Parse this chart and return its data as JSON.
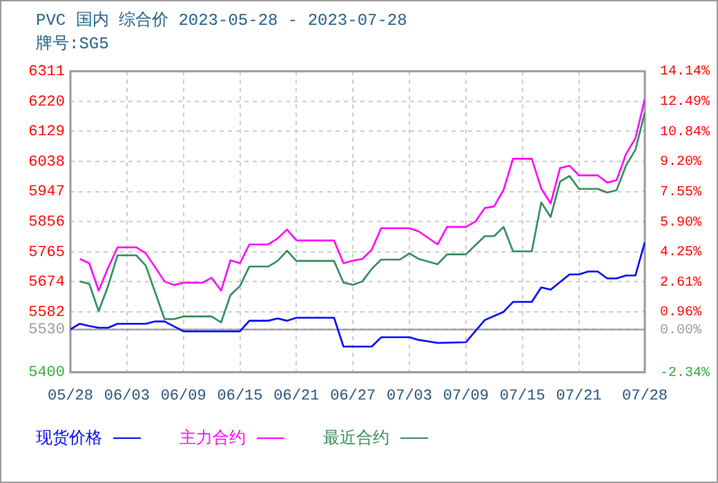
{
  "chart_data": {
    "type": "line",
    "title": "PVC 国内 综合价 2023-05-28 - 2023-07-28",
    "subtitle": "牌号:SG5",
    "xlim": [
      "2023-05-28",
      "2023-07-28"
    ],
    "xticks": [
      {
        "value": "2023-05-28",
        "label": "05/28"
      },
      {
        "value": "2023-06-03",
        "label": "06/03"
      },
      {
        "value": "2023-06-09",
        "label": "06/09"
      },
      {
        "value": "2023-06-15",
        "label": "06/15"
      },
      {
        "value": "2023-06-21",
        "label": "06/21"
      },
      {
        "value": "2023-06-27",
        "label": "06/27"
      },
      {
        "value": "2023-07-03",
        "label": "07/03"
      },
      {
        "value": "2023-07-09",
        "label": "07/09"
      },
      {
        "value": "2023-07-15",
        "label": "07/15"
      },
      {
        "value": "2023-07-21",
        "label": "07/21"
      },
      {
        "value": "2023-07-28",
        "label": "07/28"
      }
    ],
    "ylim": [
      5400,
      6311
    ],
    "yticks": [
      5400,
      5530,
      5582,
      5674,
      5765,
      5856,
      5947,
      6038,
      6129,
      6220,
      6311
    ],
    "y2lim": [
      -2.34,
      14.14
    ],
    "y2ticks": [
      {
        "value": -2.34,
        "label": "-2.34%"
      },
      {
        "value": 0,
        "label": "0.00%"
      },
      {
        "value": 0.96,
        "label": "0.96%"
      },
      {
        "value": 2.61,
        "label": "2.61%"
      },
      {
        "value": 4.25,
        "label": "4.25%"
      },
      {
        "value": 5.9,
        "label": "5.90%"
      },
      {
        "value": 7.55,
        "label": "7.55%"
      },
      {
        "value": 9.2,
        "label": "9.20%"
      },
      {
        "value": 10.84,
        "label": "10.84%"
      },
      {
        "value": 12.49,
        "label": "12.49%"
      },
      {
        "value": 14.14,
        "label": "14.14%"
      }
    ],
    "grid": true,
    "legend": "bottom",
    "marker": "none",
    "line_style": "solid",
    "ref_lines": [
      {
        "axis": "y2",
        "value": 0,
        "color": "#999999"
      }
    ],
    "series": [
      {
        "name": "现货价格",
        "color": "#0000ff",
        "x": [
          "2023-05-28",
          "2023-05-29",
          "2023-05-30",
          "2023-05-31",
          "2023-06-01",
          "2023-06-02",
          "2023-06-05",
          "2023-06-06",
          "2023-06-07",
          "2023-06-09",
          "2023-06-15",
          "2023-06-16",
          "2023-06-18",
          "2023-06-19",
          "2023-06-20",
          "2023-06-21",
          "2023-06-25",
          "2023-06-26",
          "2023-06-29",
          "2023-06-30",
          "2023-07-03",
          "2023-07-04",
          "2023-07-06",
          "2023-07-09",
          "2023-07-11",
          "2023-07-13",
          "2023-07-14",
          "2023-07-16",
          "2023-07-17",
          "2023-07-18",
          "2023-07-20",
          "2023-07-21",
          "2023-07-22",
          "2023-07-23",
          "2023-07-24",
          "2023-07-25",
          "2023-07-26",
          "2023-07-27",
          "2023-07-28"
        ],
        "values": [
          5530,
          5547,
          5540,
          5535,
          5535,
          5547,
          5547,
          5554,
          5554,
          5524,
          5524,
          5556,
          5556,
          5563,
          5556,
          5565,
          5565,
          5478,
          5478,
          5506,
          5506,
          5498,
          5489,
          5491,
          5558,
          5583,
          5613,
          5613,
          5657,
          5650,
          5696,
          5696,
          5705,
          5705,
          5684,
          5684,
          5693,
          5693,
          5794
        ]
      },
      {
        "name": "主力合约",
        "color": "#ff00ff",
        "x": [
          "2023-05-29",
          "2023-05-30",
          "2023-05-31",
          "2023-06-01",
          "2023-06-02",
          "2023-06-04",
          "2023-06-05",
          "2023-06-07",
          "2023-06-08",
          "2023-06-09",
          "2023-06-11",
          "2023-06-12",
          "2023-06-13",
          "2023-06-14",
          "2023-06-15",
          "2023-06-16",
          "2023-06-18",
          "2023-06-19",
          "2023-06-20",
          "2023-06-21",
          "2023-06-25",
          "2023-06-26",
          "2023-06-27",
          "2023-06-28",
          "2023-06-29",
          "2023-06-30",
          "2023-07-03",
          "2023-07-04",
          "2023-07-06",
          "2023-07-07",
          "2023-07-09",
          "2023-07-10",
          "2023-07-11",
          "2023-07-12",
          "2023-07-13",
          "2023-07-14",
          "2023-07-16",
          "2023-07-17",
          "2023-07-18",
          "2023-07-19",
          "2023-07-20",
          "2023-07-21",
          "2023-07-23",
          "2023-07-24",
          "2023-07-25",
          "2023-07-26",
          "2023-07-27",
          "2023-07-28"
        ],
        "values": [
          5743,
          5730,
          5647,
          5716,
          5778,
          5778,
          5760,
          5675,
          5664,
          5671,
          5671,
          5686,
          5647,
          5739,
          5730,
          5787,
          5787,
          5805,
          5832,
          5799,
          5799,
          5730,
          5738,
          5743,
          5771,
          5836,
          5836,
          5826,
          5787,
          5840,
          5840,
          5856,
          5897,
          5902,
          5952,
          6046,
          6046,
          5956,
          5911,
          6018,
          6025,
          5996,
          5996,
          5974,
          5981,
          6060,
          6108,
          6227
        ]
      },
      {
        "name": "最近合约",
        "color": "#2e8b57",
        "x": [
          "2023-05-29",
          "2023-05-30",
          "2023-05-31",
          "2023-06-01",
          "2023-06-02",
          "2023-06-04",
          "2023-06-05",
          "2023-06-07",
          "2023-06-08",
          "2023-06-09",
          "2023-06-12",
          "2023-06-13",
          "2023-06-14",
          "2023-06-15",
          "2023-06-16",
          "2023-06-18",
          "2023-06-19",
          "2023-06-20",
          "2023-06-21",
          "2023-06-25",
          "2023-06-26",
          "2023-06-27",
          "2023-06-28",
          "2023-06-29",
          "2023-06-30",
          "2023-07-02",
          "2023-07-03",
          "2023-07-04",
          "2023-07-06",
          "2023-07-07",
          "2023-07-09",
          "2023-07-11",
          "2023-07-12",
          "2023-07-13",
          "2023-07-14",
          "2023-07-16",
          "2023-07-17",
          "2023-07-18",
          "2023-07-19",
          "2023-07-20",
          "2023-07-21",
          "2023-07-23",
          "2023-07-24",
          "2023-07-25",
          "2023-07-26",
          "2023-07-27",
          "2023-07-28"
        ],
        "values": [
          5675,
          5668,
          5585,
          5661,
          5754,
          5754,
          5723,
          5561,
          5561,
          5569,
          5569,
          5551,
          5634,
          5661,
          5720,
          5720,
          5737,
          5768,
          5737,
          5737,
          5671,
          5665,
          5675,
          5713,
          5741,
          5741,
          5760,
          5743,
          5727,
          5757,
          5757,
          5812,
          5812,
          5840,
          5766,
          5766,
          5914,
          5870,
          5977,
          5994,
          5955,
          5955,
          5944,
          5951,
          6025,
          6073,
          6186
        ]
      }
    ]
  }
}
